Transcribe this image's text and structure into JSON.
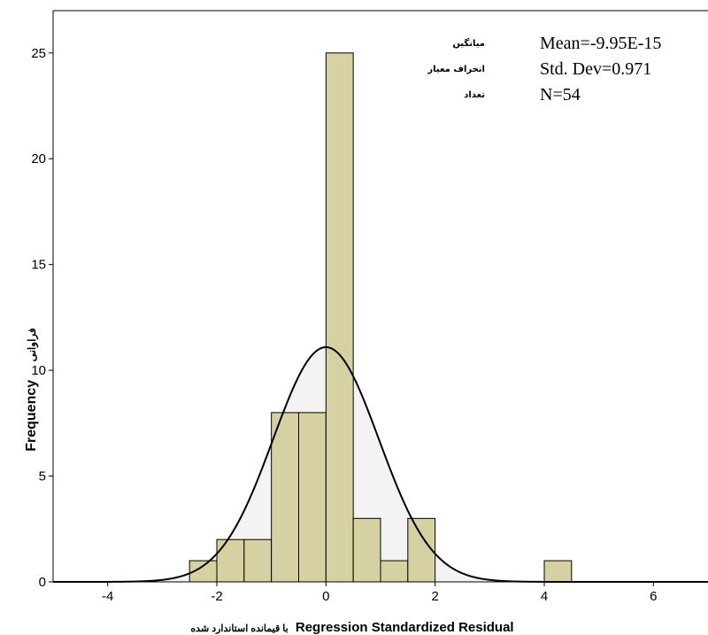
{
  "chart_data": {
    "type": "bar",
    "subtype": "histogram",
    "xlabel": "Regression Standardized Residual",
    "xlabel_fa": "با قیمانده استاندارد شده",
    "ylabel": "Frequency",
    "ylabel_fa": "فراوانی",
    "xlim": [
      -5.0,
      7.0
    ],
    "ylim": [
      0,
      27
    ],
    "xticks": [
      -4,
      -2,
      0,
      2,
      4,
      6
    ],
    "yticks": [
      0,
      5,
      10,
      15,
      20,
      25
    ],
    "bin_width": 0.5,
    "bins": [
      {
        "start": -2.5,
        "end": -2.0,
        "count": 1
      },
      {
        "start": -2.0,
        "end": -1.5,
        "count": 2
      },
      {
        "start": -1.5,
        "end": -1.0,
        "count": 2
      },
      {
        "start": -1.0,
        "end": -0.5,
        "count": 8
      },
      {
        "start": -0.5,
        "end": 0.0,
        "count": 8
      },
      {
        "start": 0.0,
        "end": 0.5,
        "count": 25
      },
      {
        "start": 0.5,
        "end": 1.0,
        "count": 3
      },
      {
        "start": 1.0,
        "end": 1.5,
        "count": 1
      },
      {
        "start": 1.5,
        "end": 2.0,
        "count": 3
      },
      {
        "start": 4.0,
        "end": 4.5,
        "count": 1
      }
    ],
    "normal_curve": {
      "mean": 0,
      "std": 0.971,
      "n": 54
    },
    "stats": [
      {
        "label_fa": "میانگین",
        "text": "Mean=-9.95E-15"
      },
      {
        "label_fa": "انحراف معیار",
        "text": "Std. Dev=0.971"
      },
      {
        "label_fa": "تعداد",
        "text": "N=54"
      }
    ],
    "colors": {
      "bar_fill": "#d6d1a2",
      "bar_stroke": "#000000",
      "curve": "#000000",
      "curve_area": "#f3f3f3"
    },
    "grid": false
  }
}
